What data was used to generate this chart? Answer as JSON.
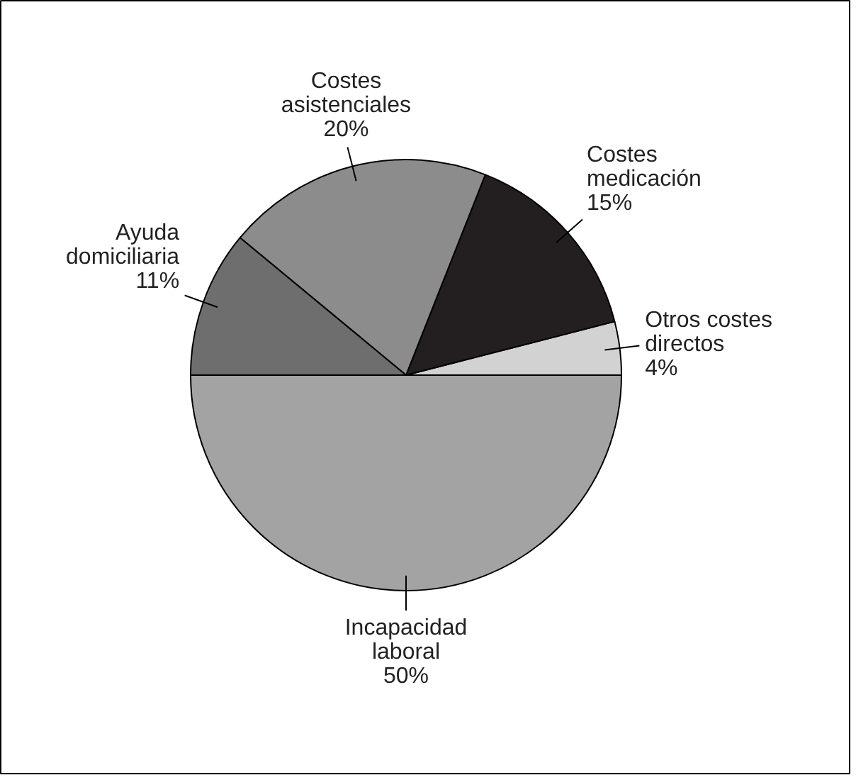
{
  "chart_data": {
    "type": "pie",
    "categories": [
      "Otros costes directos",
      "Costes medicación",
      "Costes asistenciales",
      "Ayuda domiciliaria",
      "Incapacidad laboral"
    ],
    "values": [
      4,
      15,
      20,
      11,
      50
    ],
    "colors": [
      "#d2d2d2",
      "#231f20",
      "#8c8c8c",
      "#6e6e6e",
      "#a3a3a3"
    ],
    "value_labels": [
      "4%",
      "15%",
      "20%",
      "11%",
      "50%"
    ]
  }
}
